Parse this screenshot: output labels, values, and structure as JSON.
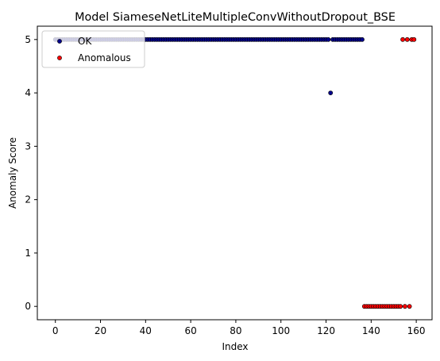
{
  "chart_data": {
    "type": "scatter",
    "title": "Model SiameseNetLiteMultipleConvWithoutDropout_BSE",
    "xlabel": "Index",
    "ylabel": "Anomaly Score",
    "xlim": [
      -8,
      167
    ],
    "ylim": [
      -0.25,
      5.25
    ],
    "xticks": [
      0,
      20,
      40,
      60,
      80,
      100,
      120,
      140,
      160
    ],
    "yticks": [
      0,
      1,
      2,
      3,
      4,
      5
    ],
    "grid": false,
    "legend_position": "upper-left",
    "series": [
      {
        "name": "OK",
        "color": "#00008b",
        "points": [
          [
            0,
            5
          ],
          [
            1,
            5
          ],
          [
            2,
            5
          ],
          [
            3,
            5
          ],
          [
            4,
            5
          ],
          [
            5,
            5
          ],
          [
            6,
            5
          ],
          [
            7,
            5
          ],
          [
            8,
            5
          ],
          [
            9,
            5
          ],
          [
            10,
            5
          ],
          [
            11,
            5
          ],
          [
            12,
            5
          ],
          [
            13,
            5
          ],
          [
            14,
            5
          ],
          [
            15,
            5
          ],
          [
            16,
            5
          ],
          [
            17,
            5
          ],
          [
            18,
            5
          ],
          [
            19,
            5
          ],
          [
            20,
            5
          ],
          [
            21,
            5
          ],
          [
            22,
            5
          ],
          [
            23,
            5
          ],
          [
            24,
            5
          ],
          [
            25,
            5
          ],
          [
            26,
            5
          ],
          [
            27,
            5
          ],
          [
            28,
            5
          ],
          [
            29,
            5
          ],
          [
            30,
            5
          ],
          [
            31,
            5
          ],
          [
            32,
            5
          ],
          [
            33,
            5
          ],
          [
            34,
            5
          ],
          [
            35,
            5
          ],
          [
            36,
            5
          ],
          [
            37,
            5
          ],
          [
            38,
            5
          ],
          [
            39,
            5
          ],
          [
            40,
            5
          ],
          [
            41,
            5
          ],
          [
            42,
            5
          ],
          [
            43,
            5
          ],
          [
            44,
            5
          ],
          [
            45,
            5
          ],
          [
            46,
            5
          ],
          [
            47,
            5
          ],
          [
            48,
            5
          ],
          [
            49,
            5
          ],
          [
            50,
            5
          ],
          [
            51,
            5
          ],
          [
            52,
            5
          ],
          [
            53,
            5
          ],
          [
            54,
            5
          ],
          [
            55,
            5
          ],
          [
            56,
            5
          ],
          [
            57,
            5
          ],
          [
            58,
            5
          ],
          [
            59,
            5
          ],
          [
            60,
            5
          ],
          [
            61,
            5
          ],
          [
            62,
            5
          ],
          [
            63,
            5
          ],
          [
            64,
            5
          ],
          [
            65,
            5
          ],
          [
            66,
            5
          ],
          [
            67,
            5
          ],
          [
            68,
            5
          ],
          [
            69,
            5
          ],
          [
            70,
            5
          ],
          [
            71,
            5
          ],
          [
            72,
            5
          ],
          [
            73,
            5
          ],
          [
            74,
            5
          ],
          [
            75,
            5
          ],
          [
            76,
            5
          ],
          [
            77,
            5
          ],
          [
            78,
            5
          ],
          [
            79,
            5
          ],
          [
            80,
            5
          ],
          [
            81,
            5
          ],
          [
            82,
            5
          ],
          [
            83,
            5
          ],
          [
            84,
            5
          ],
          [
            85,
            5
          ],
          [
            86,
            5
          ],
          [
            87,
            5
          ],
          [
            88,
            5
          ],
          [
            89,
            5
          ],
          [
            90,
            5
          ],
          [
            91,
            5
          ],
          [
            92,
            5
          ],
          [
            93,
            5
          ],
          [
            94,
            5
          ],
          [
            95,
            5
          ],
          [
            96,
            5
          ],
          [
            97,
            5
          ],
          [
            98,
            5
          ],
          [
            99,
            5
          ],
          [
            100,
            5
          ],
          [
            101,
            5
          ],
          [
            102,
            5
          ],
          [
            103,
            5
          ],
          [
            104,
            5
          ],
          [
            105,
            5
          ],
          [
            106,
            5
          ],
          [
            107,
            5
          ],
          [
            108,
            5
          ],
          [
            109,
            5
          ],
          [
            110,
            5
          ],
          [
            111,
            5
          ],
          [
            112,
            5
          ],
          [
            113,
            5
          ],
          [
            114,
            5
          ],
          [
            115,
            5
          ],
          [
            116,
            5
          ],
          [
            117,
            5
          ],
          [
            118,
            5
          ],
          [
            119,
            5
          ],
          [
            120,
            5
          ],
          [
            121,
            5
          ],
          [
            122,
            4
          ],
          [
            123,
            5
          ],
          [
            124,
            5
          ],
          [
            125,
            5
          ],
          [
            126,
            5
          ],
          [
            127,
            5
          ],
          [
            128,
            5
          ],
          [
            129,
            5
          ],
          [
            130,
            5
          ],
          [
            131,
            5
          ],
          [
            132,
            5
          ],
          [
            133,
            5
          ],
          [
            134,
            5
          ],
          [
            135,
            5
          ],
          [
            136,
            5
          ]
        ]
      },
      {
        "name": "Anomalous",
        "color": "#ff0000",
        "points": [
          [
            137,
            0
          ],
          [
            138,
            0
          ],
          [
            139,
            0
          ],
          [
            140,
            0
          ],
          [
            141,
            0
          ],
          [
            142,
            0
          ],
          [
            143,
            0
          ],
          [
            144,
            0
          ],
          [
            145,
            0
          ],
          [
            146,
            0
          ],
          [
            147,
            0
          ],
          [
            148,
            0
          ],
          [
            149,
            0
          ],
          [
            150,
            0
          ],
          [
            151,
            0
          ],
          [
            152,
            0
          ],
          [
            153,
            0
          ],
          [
            154,
            5
          ],
          [
            155,
            0
          ],
          [
            156,
            5
          ],
          [
            157,
            0
          ],
          [
            158,
            5
          ],
          [
            159,
            5
          ]
        ]
      }
    ]
  }
}
